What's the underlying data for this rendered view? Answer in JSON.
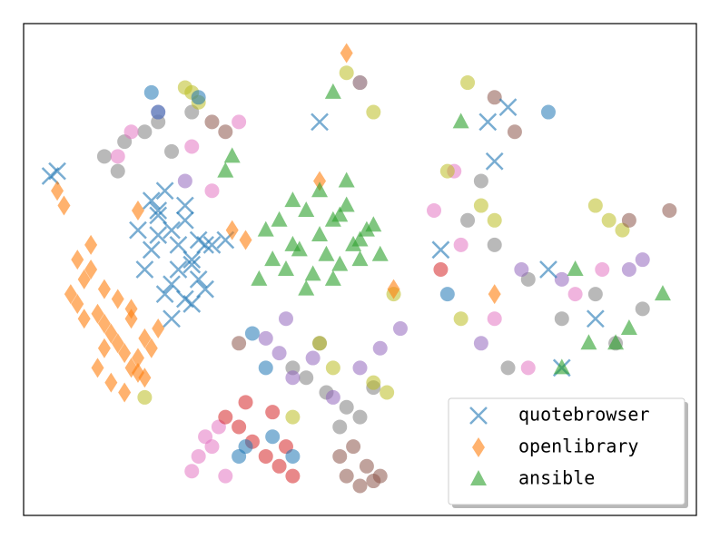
{
  "chart_data": {
    "type": "scatter",
    "xlim": [
      0,
      100
    ],
    "ylim": [
      0,
      100
    ],
    "legend": "lower right",
    "series": [
      {
        "color": "#7f7f7f",
        "marker": "circle",
        "x": [
          12,
          15,
          18,
          20,
          22,
          25,
          14,
          40,
          42,
          45,
          48,
          50,
          52,
          44,
          47,
          66,
          70,
          75,
          80,
          85,
          88,
          92,
          68,
          72
        ],
        "values": [
          73,
          76,
          78,
          80,
          74,
          82,
          70,
          30,
          28,
          25,
          22,
          20,
          26,
          35,
          18,
          60,
          55,
          48,
          40,
          45,
          35,
          42,
          68,
          30
        ]
      },
      {
        "color": "#e377c2",
        "marker": "circle",
        "x": [
          14,
          16,
          20,
          25,
          28,
          32,
          26,
          28,
          30,
          25,
          27,
          29,
          61,
          65,
          70,
          75,
          82,
          86,
          64,
          78
        ],
        "values": [
          73,
          78,
          82,
          75,
          66,
          80,
          12,
          14,
          8,
          9,
          16,
          18,
          62,
          55,
          40,
          30,
          45,
          50,
          70,
          20
        ]
      },
      {
        "color": "#bcbd22",
        "marker": "circle",
        "x": [
          25,
          26,
          24,
          48,
          50,
          52,
          54,
          46,
          66,
          68,
          70,
          63,
          85,
          87,
          89,
          65,
          74,
          55,
          18,
          40,
          44,
          52
        ],
        "values": [
          86,
          84,
          87,
          90,
          88,
          27,
          25,
          30,
          88,
          63,
          60,
          70,
          63,
          60,
          58,
          40,
          20,
          45,
          24,
          20,
          35,
          82
        ]
      },
      {
        "color": "#9467bd",
        "marker": "circle",
        "x": [
          36,
          38,
          40,
          43,
          46,
          50,
          53,
          56,
          39,
          68,
          74,
          80,
          90,
          92,
          24,
          50
        ],
        "values": [
          36,
          33,
          28,
          32,
          24,
          30,
          34,
          38,
          40,
          35,
          50,
          48,
          50,
          52,
          68,
          88
        ]
      },
      {
        "color": "#8c564b",
        "marker": "circle",
        "x": [
          47,
          48,
          50,
          51,
          52,
          49,
          53,
          30,
          28,
          32,
          70,
          73,
          90,
          96
        ],
        "values": [
          12,
          8,
          6,
          10,
          7,
          14,
          8,
          78,
          80,
          35,
          85,
          78,
          60,
          62
        ]
      },
      {
        "color": "#d62728",
        "marker": "circle",
        "x": [
          32,
          34,
          36,
          38,
          40,
          30,
          33,
          37,
          39,
          62
        ],
        "values": [
          18,
          15,
          12,
          10,
          8,
          20,
          23,
          21,
          14,
          50
        ]
      },
      {
        "color": "#1f77b4",
        "marker": "circle",
        "x": [
          19,
          20,
          34,
          36,
          33,
          32,
          37,
          40,
          63,
          78,
          26
        ],
        "values": [
          86,
          82,
          37,
          30,
          14,
          12,
          16,
          12,
          45,
          82,
          85
        ]
      },
      {
        "name": "quotebrowser",
        "color": "#1f77b4",
        "marker": "x",
        "x": [
          4,
          5,
          19,
          20,
          21,
          22,
          23,
          24,
          25,
          26,
          18,
          19,
          20,
          21,
          22,
          23,
          24,
          25,
          26,
          27,
          20,
          22,
          24,
          17,
          28,
          30,
          25,
          69,
          72,
          70,
          62,
          85,
          80,
          78,
          44,
          27
        ],
        "values": [
          69,
          70,
          64,
          61,
          66,
          58,
          55,
          60,
          52,
          48,
          50,
          54,
          57,
          45,
          47,
          50,
          44,
          43,
          56,
          46,
          62,
          40,
          63,
          58,
          55,
          56,
          51,
          80,
          83,
          72,
          54,
          40,
          30,
          50,
          80,
          55
        ]
      },
      {
        "name": "openlibrary",
        "color": "#ff7f0e",
        "marker": "diamond",
        "x": [
          5,
          6,
          7,
          8,
          9,
          10,
          11,
          12,
          13,
          14,
          15,
          16,
          17,
          18,
          19,
          20,
          8,
          10,
          12,
          14,
          16,
          18,
          11,
          13,
          15,
          17,
          9,
          12,
          16,
          31,
          33,
          44,
          55,
          70,
          48,
          17
        ],
        "values": [
          66,
          63,
          45,
          43,
          48,
          50,
          41,
          39,
          37,
          35,
          33,
          30,
          32,
          28,
          34,
          38,
          52,
          55,
          46,
          44,
          40,
          36,
          30,
          27,
          25,
          29,
          40,
          34,
          42,
          58,
          56,
          68,
          46,
          45,
          94,
          62
        ]
      },
      {
        "name": "ansible",
        "color": "#2ca02c",
        "marker": "triangle",
        "x": [
          36,
          38,
          40,
          42,
          44,
          46,
          48,
          50,
          52,
          37,
          39,
          41,
          43,
          45,
          47,
          49,
          51,
          40,
          44,
          48,
          42,
          46,
          50,
          35,
          53,
          31,
          47,
          80,
          88,
          82,
          84,
          90,
          65,
          95,
          46,
          30
        ],
        "values": [
          58,
          60,
          55,
          62,
          57,
          60,
          63,
          56,
          59,
          52,
          50,
          54,
          49,
          53,
          51,
          55,
          58,
          64,
          66,
          68,
          46,
          48,
          52,
          48,
          53,
          73,
          61,
          30,
          35,
          50,
          35,
          38,
          80,
          45,
          86,
          70
        ]
      }
    ]
  }
}
